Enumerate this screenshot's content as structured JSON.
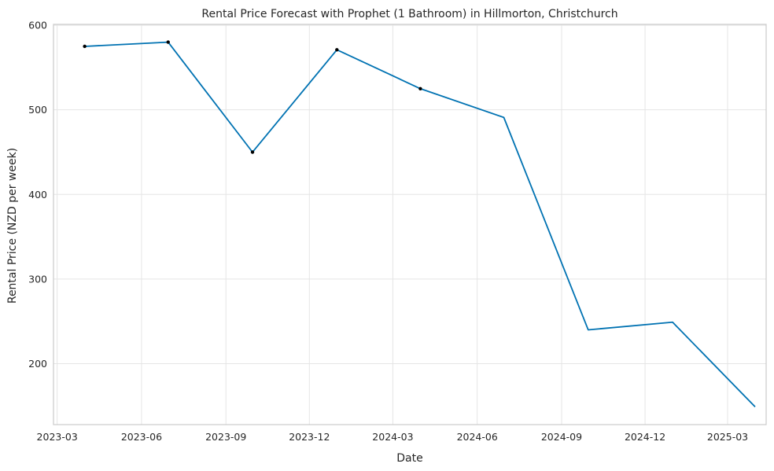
{
  "chart_data": {
    "type": "line",
    "title": "Rental Price Forecast with Prophet (1 Bathroom) in Hillmorton, Christchurch",
    "xlabel": "Date",
    "ylabel": "Rental Price (NZD per week)",
    "x_range": [
      "2023-02-25",
      "2025-04-12"
    ],
    "ylim": [
      128,
      601
    ],
    "grid": true,
    "colors": {
      "line": "#0072b2",
      "points": "#000000",
      "grid": "#e5e5e5",
      "frame": "#cccccc"
    },
    "x_ticks": [
      {
        "date": "2023-03-01",
        "label": "2023-03"
      },
      {
        "date": "2023-06-01",
        "label": "2023-06"
      },
      {
        "date": "2023-09-01",
        "label": "2023-09"
      },
      {
        "date": "2023-12-01",
        "label": "2023-12"
      },
      {
        "date": "2024-03-01",
        "label": "2024-03"
      },
      {
        "date": "2024-06-01",
        "label": "2024-06"
      },
      {
        "date": "2024-09-01",
        "label": "2024-09"
      },
      {
        "date": "2024-12-01",
        "label": "2024-12"
      },
      {
        "date": "2025-03-01",
        "label": "2025-03"
      }
    ],
    "y_ticks": [
      {
        "value": 200,
        "label": "200"
      },
      {
        "value": 300,
        "label": "300"
      },
      {
        "value": 400,
        "label": "400"
      },
      {
        "value": 500,
        "label": "500"
      },
      {
        "value": 600,
        "label": "600"
      }
    ],
    "series": [
      {
        "type": "line",
        "points": [
          {
            "x": "2023-03-31",
            "y": 575
          },
          {
            "x": "2023-06-30",
            "y": 580
          },
          {
            "x": "2023-09-30",
            "y": 450
          },
          {
            "x": "2023-12-31",
            "y": 571
          },
          {
            "x": "2024-03-31",
            "y": 525
          },
          {
            "x": "2024-06-30",
            "y": 491
          },
          {
            "x": "2024-09-30",
            "y": 240
          },
          {
            "x": "2024-12-31",
            "y": 249
          },
          {
            "x": "2025-03-31",
            "y": 149
          }
        ]
      },
      {
        "type": "scatter",
        "points": [
          {
            "x": "2023-03-31",
            "y": 575
          },
          {
            "x": "2023-06-30",
            "y": 580
          },
          {
            "x": "2023-09-30",
            "y": 450
          },
          {
            "x": "2023-12-31",
            "y": 571
          },
          {
            "x": "2024-03-31",
            "y": 525
          }
        ]
      }
    ]
  }
}
